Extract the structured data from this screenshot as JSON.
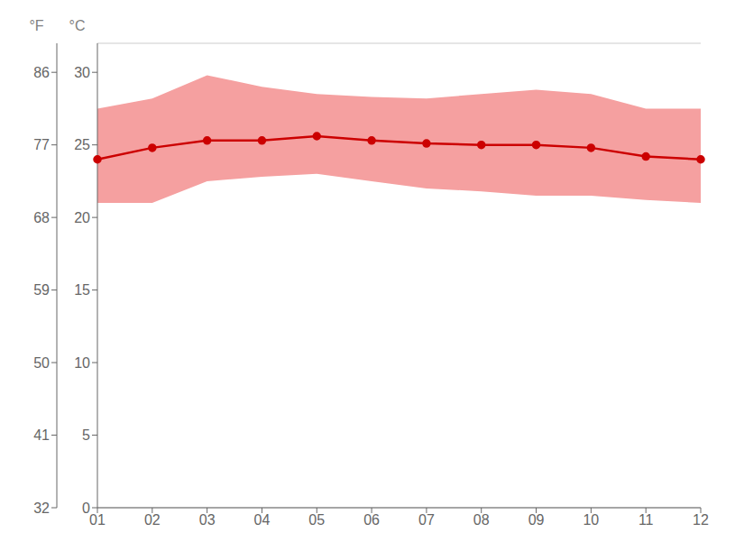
{
  "chart_data": {
    "type": "line",
    "categories": [
      "01",
      "02",
      "03",
      "04",
      "05",
      "06",
      "07",
      "08",
      "09",
      "10",
      "11",
      "12"
    ],
    "series": [
      {
        "type": "range",
        "color": "#f5a0a0",
        "low": [
          21.0,
          21.0,
          22.5,
          22.8,
          23.0,
          22.5,
          22.0,
          21.8,
          21.5,
          21.5,
          21.2,
          21.0
        ],
        "high": [
          27.5,
          28.2,
          29.8,
          29.0,
          28.5,
          28.3,
          28.2,
          28.5,
          28.8,
          28.5,
          27.5,
          27.5
        ]
      },
      {
        "type": "line",
        "color": "#cc0000",
        "marker": "o",
        "values": [
          24.0,
          24.8,
          25.3,
          25.3,
          25.6,
          25.3,
          25.1,
          25.0,
          25.0,
          24.8,
          24.2,
          24.0
        ]
      }
    ],
    "ylim": [
      0,
      32
    ],
    "yticks": [
      0,
      5,
      10,
      15,
      20,
      25,
      30
    ],
    "ylabel": "°C",
    "y2lim": [
      32,
      89.6
    ],
    "y2ticks": [
      32,
      41,
      50,
      59,
      68,
      77,
      86
    ],
    "y2label": "°F",
    "grid": true
  }
}
